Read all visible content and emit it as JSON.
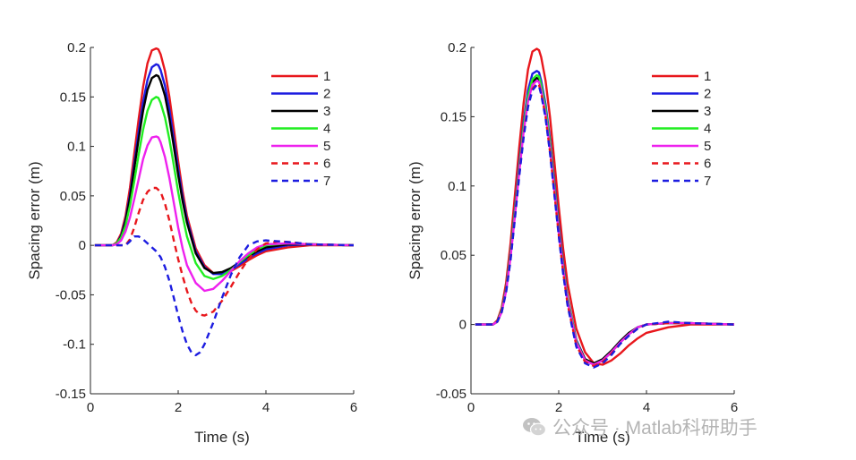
{
  "chart_data": [
    {
      "type": "line",
      "xlabel": "Time (s)",
      "ylabel": "Spacing error (m)",
      "xlim": [
        0,
        6
      ],
      "ylim": [
        -0.15,
        0.2
      ],
      "xticks": [
        0,
        2,
        4,
        6
      ],
      "xtick_labels": [
        "0",
        "2",
        "4",
        "6"
      ],
      "yticks": [
        -0.15,
        -0.1,
        -0.05,
        0,
        0.05,
        0.1,
        0.15,
        0.2
      ],
      "ytick_labels": [
        "-0.15",
        "-0.1",
        "-0.05",
        "0",
        "0.05",
        "0.1",
        "0.15",
        "0.2"
      ],
      "legend_position": "top-right",
      "series": [
        {
          "name": "1",
          "color": "#e8171c",
          "dash": "solid",
          "x": [
            0.1,
            0.5,
            0.6,
            0.7,
            0.8,
            0.9,
            1.0,
            1.1,
            1.2,
            1.3,
            1.4,
            1.5,
            1.55,
            1.6,
            1.7,
            1.8,
            1.9,
            2.0,
            2.1,
            2.2,
            2.4,
            2.6,
            2.8,
            3.0,
            3.2,
            3.4,
            3.6,
            3.8,
            4.0,
            4.5,
            5.0,
            6.0
          ],
          "y": [
            0,
            0,
            0.003,
            0.012,
            0.03,
            0.058,
            0.093,
            0.128,
            0.16,
            0.184,
            0.197,
            0.199,
            0.198,
            0.193,
            0.176,
            0.15,
            0.118,
            0.085,
            0.055,
            0.03,
            -0.003,
            -0.02,
            -0.028,
            -0.029,
            -0.026,
            -0.021,
            -0.015,
            -0.01,
            -0.006,
            -0.002,
            0,
            0
          ]
        },
        {
          "name": "2",
          "color": "#1c1ce0",
          "dash": "solid",
          "x": [
            0.1,
            0.5,
            0.6,
            0.7,
            0.8,
            0.9,
            1.0,
            1.1,
            1.2,
            1.3,
            1.4,
            1.5,
            1.55,
            1.6,
            1.7,
            1.8,
            1.9,
            2.0,
            2.1,
            2.2,
            2.4,
            2.6,
            2.8,
            3.0,
            3.2,
            3.4,
            3.6,
            3.8,
            4.0,
            4.5,
            5.0,
            6.0
          ],
          "y": [
            0,
            0,
            0.002,
            0.01,
            0.026,
            0.051,
            0.083,
            0.115,
            0.145,
            0.167,
            0.18,
            0.183,
            0.182,
            0.177,
            0.161,
            0.137,
            0.107,
            0.077,
            0.049,
            0.026,
            -0.006,
            -0.022,
            -0.029,
            -0.029,
            -0.025,
            -0.019,
            -0.013,
            -0.008,
            -0.004,
            0,
            0.001,
            0
          ]
        },
        {
          "name": "3",
          "color": "#000000",
          "dash": "solid",
          "x": [
            0.1,
            0.5,
            0.6,
            0.7,
            0.8,
            0.9,
            1.0,
            1.1,
            1.2,
            1.3,
            1.4,
            1.5,
            1.55,
            1.6,
            1.7,
            1.8,
            1.9,
            2.0,
            2.1,
            2.2,
            2.4,
            2.6,
            2.8,
            3.0,
            3.2,
            3.4,
            3.6,
            3.8,
            4.0,
            4.5,
            5.0,
            6.0
          ],
          "y": [
            0,
            0,
            0.002,
            0.009,
            0.024,
            0.048,
            0.078,
            0.108,
            0.136,
            0.157,
            0.169,
            0.172,
            0.171,
            0.166,
            0.151,
            0.128,
            0.1,
            0.071,
            0.045,
            0.023,
            -0.008,
            -0.023,
            -0.028,
            -0.027,
            -0.023,
            -0.017,
            -0.011,
            -0.006,
            -0.002,
            0.001,
            0.001,
            0
          ]
        },
        {
          "name": "4",
          "color": "#21ee21",
          "dash": "solid",
          "x": [
            0.1,
            0.5,
            0.6,
            0.7,
            0.8,
            0.9,
            1.0,
            1.1,
            1.2,
            1.3,
            1.4,
            1.5,
            1.55,
            1.6,
            1.7,
            1.8,
            1.9,
            2.0,
            2.1,
            2.2,
            2.4,
            2.6,
            2.8,
            3.0,
            3.2,
            3.4,
            3.6,
            3.8,
            4.0,
            4.5,
            5.0,
            6.0
          ],
          "y": [
            0,
            0,
            0.002,
            0.008,
            0.02,
            0.04,
            0.065,
            0.092,
            0.117,
            0.136,
            0.147,
            0.15,
            0.149,
            0.144,
            0.129,
            0.107,
            0.081,
            0.054,
            0.03,
            0.009,
            -0.018,
            -0.031,
            -0.034,
            -0.031,
            -0.025,
            -0.017,
            -0.01,
            -0.004,
            0,
            0.002,
            0.001,
            0
          ]
        },
        {
          "name": "5",
          "color": "#ee21ee",
          "dash": "solid",
          "x": [
            0.1,
            0.5,
            0.6,
            0.7,
            0.8,
            0.9,
            1.0,
            1.1,
            1.2,
            1.3,
            1.4,
            1.5,
            1.55,
            1.6,
            1.7,
            1.8,
            1.9,
            2.0,
            2.1,
            2.2,
            2.4,
            2.6,
            2.8,
            3.0,
            3.2,
            3.4,
            3.6,
            3.8,
            4.0,
            4.5,
            5.0,
            6.0
          ],
          "y": [
            0,
            0,
            0.001,
            0.005,
            0.014,
            0.028,
            0.047,
            0.067,
            0.087,
            0.101,
            0.109,
            0.11,
            0.109,
            0.104,
            0.089,
            0.068,
            0.043,
            0.018,
            -0.003,
            -0.02,
            -0.038,
            -0.046,
            -0.044,
            -0.036,
            -0.026,
            -0.016,
            -0.008,
            -0.002,
            0.001,
            0.002,
            0.001,
            0
          ]
        },
        {
          "name": "6",
          "color": "#e8171c",
          "dash": "dashed",
          "x": [
            0.1,
            0.8,
            0.9,
            1.0,
            1.1,
            1.2,
            1.3,
            1.4,
            1.5,
            1.6,
            1.7,
            1.8,
            1.9,
            2.0,
            2.1,
            2.2,
            2.3,
            2.4,
            2.5,
            2.6,
            2.8,
            3.0,
            3.2,
            3.4,
            3.6,
            3.8,
            4.0,
            4.3,
            4.6,
            5.0,
            6.0
          ],
          "y": [
            0,
            0,
            0.006,
            0.018,
            0.033,
            0.046,
            0.054,
            0.058,
            0.058,
            0.054,
            0.042,
            0.025,
            0.005,
            -0.014,
            -0.031,
            -0.046,
            -0.058,
            -0.066,
            -0.07,
            -0.071,
            -0.067,
            -0.056,
            -0.042,
            -0.027,
            -0.014,
            -0.004,
            0.002,
            0.004,
            0.003,
            0.001,
            0
          ]
        },
        {
          "name": "7",
          "color": "#1c1ce0",
          "dash": "dashed",
          "x": [
            0.1,
            0.8,
            0.9,
            1.0,
            1.1,
            1.2,
            1.3,
            1.4,
            1.5,
            1.6,
            1.7,
            1.8,
            1.9,
            2.0,
            2.1,
            2.2,
            2.3,
            2.4,
            2.5,
            2.6,
            2.8,
            3.0,
            3.2,
            3.4,
            3.6,
            3.8,
            4.0,
            4.3,
            4.6,
            5.0,
            6.0
          ],
          "y": [
            0,
            0,
            0.004,
            0.009,
            0.009,
            0.006,
            0.002,
            -0.002,
            -0.006,
            -0.012,
            -0.022,
            -0.036,
            -0.053,
            -0.071,
            -0.087,
            -0.1,
            -0.108,
            -0.111,
            -0.108,
            -0.1,
            -0.078,
            -0.053,
            -0.03,
            -0.012,
            0,
            0.004,
            0.005,
            0.004,
            0.003,
            0.001,
            0
          ]
        }
      ]
    },
    {
      "type": "line",
      "xlabel": "Time (s)",
      "ylabel": "Spacing error (m)",
      "xlim": [
        0,
        6
      ],
      "ylim": [
        -0.05,
        0.2
      ],
      "xticks": [
        0,
        2,
        4,
        6
      ],
      "xtick_labels": [
        "0",
        "2",
        "4",
        "6"
      ],
      "yticks": [
        -0.05,
        0,
        0.05,
        0.1,
        0.15,
        0.2
      ],
      "ytick_labels": [
        "-0.05",
        "0",
        "0.05",
        "0.1",
        "0.15",
        "0.2"
      ],
      "legend_position": "top-right",
      "series": [
        {
          "name": "1",
          "color": "#e8171c",
          "dash": "solid",
          "x": [
            0.1,
            0.5,
            0.6,
            0.7,
            0.8,
            0.9,
            1.0,
            1.1,
            1.2,
            1.3,
            1.4,
            1.5,
            1.55,
            1.6,
            1.7,
            1.8,
            1.9,
            2.0,
            2.1,
            2.2,
            2.4,
            2.6,
            2.8,
            3.0,
            3.2,
            3.4,
            3.6,
            3.8,
            4.0,
            4.5,
            5.0,
            6.0
          ],
          "y": [
            0,
            0,
            0.003,
            0.012,
            0.03,
            0.058,
            0.093,
            0.128,
            0.16,
            0.184,
            0.197,
            0.199,
            0.198,
            0.193,
            0.176,
            0.15,
            0.118,
            0.085,
            0.055,
            0.03,
            -0.003,
            -0.02,
            -0.028,
            -0.029,
            -0.026,
            -0.021,
            -0.015,
            -0.01,
            -0.006,
            -0.002,
            0,
            0
          ]
        },
        {
          "name": "2",
          "color": "#1c1ce0",
          "dash": "solid",
          "x": [
            0.1,
            0.5,
            0.6,
            0.7,
            0.8,
            0.9,
            1.0,
            1.1,
            1.2,
            1.3,
            1.4,
            1.5,
            1.55,
            1.6,
            1.7,
            1.8,
            1.9,
            2.0,
            2.1,
            2.2,
            2.4,
            2.6,
            2.8,
            3.0,
            3.2,
            3.4,
            3.6,
            3.8,
            4.0,
            4.5,
            5.0,
            6.0
          ],
          "y": [
            0,
            0,
            0.002,
            0.01,
            0.026,
            0.051,
            0.083,
            0.116,
            0.146,
            0.169,
            0.181,
            0.183,
            0.182,
            0.176,
            0.159,
            0.134,
            0.103,
            0.072,
            0.044,
            0.02,
            -0.011,
            -0.025,
            -0.029,
            -0.026,
            -0.02,
            -0.013,
            -0.007,
            -0.002,
            0,
            0.001,
            0.001,
            0
          ]
        },
        {
          "name": "3",
          "color": "#000000",
          "dash": "solid",
          "x": [
            0.1,
            0.5,
            0.6,
            0.7,
            0.8,
            0.9,
            1.0,
            1.1,
            1.2,
            1.3,
            1.4,
            1.5,
            1.55,
            1.6,
            1.7,
            1.8,
            1.9,
            2.0,
            2.1,
            2.2,
            2.4,
            2.6,
            2.8,
            3.0,
            3.2,
            3.4,
            3.6,
            3.8,
            4.0,
            4.5,
            5.0,
            6.0
          ],
          "y": [
            0,
            0,
            0.002,
            0.01,
            0.025,
            0.049,
            0.08,
            0.112,
            0.141,
            0.163,
            0.175,
            0.178,
            0.177,
            0.171,
            0.154,
            0.129,
            0.099,
            0.068,
            0.041,
            0.018,
            -0.012,
            -0.025,
            -0.028,
            -0.025,
            -0.019,
            -0.012,
            -0.006,
            -0.002,
            0,
            0.001,
            0.001,
            0
          ]
        },
        {
          "name": "4",
          "color": "#21ee21",
          "dash": "solid",
          "x": [
            0.1,
            0.5,
            0.6,
            0.7,
            0.8,
            0.9,
            1.0,
            1.1,
            1.2,
            1.3,
            1.4,
            1.5,
            1.55,
            1.6,
            1.7,
            1.8,
            1.9,
            2.0,
            2.1,
            2.2,
            2.4,
            2.6,
            2.8,
            3.0,
            3.2,
            3.4,
            3.6,
            3.8,
            4.0,
            4.5,
            5.0,
            6.0
          ],
          "y": [
            0,
            0,
            0.002,
            0.01,
            0.025,
            0.05,
            0.081,
            0.113,
            0.143,
            0.165,
            0.177,
            0.18,
            0.179,
            0.173,
            0.156,
            0.131,
            0.1,
            0.069,
            0.042,
            0.019,
            -0.012,
            -0.026,
            -0.029,
            -0.026,
            -0.02,
            -0.013,
            -0.007,
            -0.002,
            0,
            0.001,
            0.001,
            0
          ]
        },
        {
          "name": "5",
          "color": "#ee21ee",
          "dash": "solid",
          "x": [
            0.1,
            0.5,
            0.6,
            0.7,
            0.8,
            0.9,
            1.0,
            1.1,
            1.2,
            1.3,
            1.4,
            1.5,
            1.55,
            1.6,
            1.7,
            1.8,
            1.9,
            2.0,
            2.1,
            2.2,
            2.4,
            2.6,
            2.8,
            3.0,
            3.2,
            3.4,
            3.6,
            3.8,
            4.0,
            4.5,
            5.0,
            6.0
          ],
          "y": [
            0,
            0,
            0.002,
            0.009,
            0.024,
            0.048,
            0.078,
            0.11,
            0.139,
            0.161,
            0.173,
            0.176,
            0.175,
            0.169,
            0.152,
            0.127,
            0.097,
            0.067,
            0.04,
            0.017,
            -0.013,
            -0.026,
            -0.029,
            -0.026,
            -0.02,
            -0.013,
            -0.007,
            -0.002,
            0,
            0.001,
            0.001,
            0
          ]
        },
        {
          "name": "6",
          "color": "#e8171c",
          "dash": "dashed",
          "x": [
            0.1,
            0.5,
            0.6,
            0.7,
            0.8,
            0.9,
            1.0,
            1.1,
            1.2,
            1.3,
            1.4,
            1.5,
            1.55,
            1.6,
            1.7,
            1.8,
            1.9,
            2.0,
            2.1,
            2.2,
            2.4,
            2.6,
            2.8,
            3.0,
            3.2,
            3.4,
            3.6,
            3.8,
            4.0,
            4.5,
            5.0,
            6.0
          ],
          "y": [
            0,
            0,
            0.002,
            0.009,
            0.024,
            0.047,
            0.077,
            0.108,
            0.137,
            0.158,
            0.17,
            0.174,
            0.173,
            0.167,
            0.15,
            0.125,
            0.095,
            0.065,
            0.038,
            0.015,
            -0.015,
            -0.027,
            -0.03,
            -0.027,
            -0.021,
            -0.014,
            -0.008,
            -0.003,
            0,
            0.001,
            0.001,
            0
          ]
        },
        {
          "name": "7",
          "color": "#1c1ce0",
          "dash": "dashed",
          "x": [
            0.1,
            0.5,
            0.6,
            0.7,
            0.8,
            0.9,
            1.0,
            1.1,
            1.2,
            1.3,
            1.4,
            1.5,
            1.55,
            1.6,
            1.7,
            1.8,
            1.9,
            2.0,
            2.1,
            2.2,
            2.4,
            2.6,
            2.8,
            3.0,
            3.2,
            3.4,
            3.6,
            3.8,
            4.0,
            4.5,
            5.0,
            6.0
          ],
          "y": [
            0,
            0,
            0.002,
            0.009,
            0.023,
            0.046,
            0.076,
            0.107,
            0.135,
            0.157,
            0.169,
            0.173,
            0.172,
            0.166,
            0.149,
            0.124,
            0.094,
            0.064,
            0.037,
            0.014,
            -0.016,
            -0.028,
            -0.031,
            -0.028,
            -0.022,
            -0.014,
            -0.008,
            -0.003,
            0,
            0.002,
            0.001,
            0
          ]
        }
      ]
    }
  ],
  "watermark": {
    "text": "公众号 · Matlab科研助手",
    "logo_icon": "wechat-icon",
    "color": "#b4b4b4"
  }
}
